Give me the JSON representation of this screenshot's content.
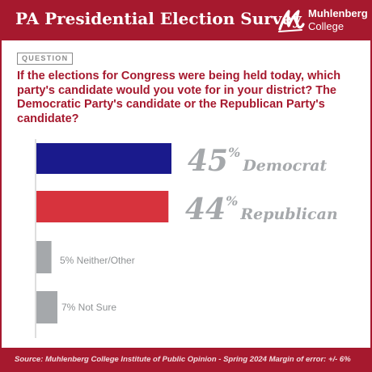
{
  "header": {
    "title": "PA Presidential Election Survey"
  },
  "logo": {
    "line1": "Muhlenberg",
    "line2": "College"
  },
  "question": {
    "tag": "QUESTION",
    "text": "If the elections for Congress were being held today, which party's candidate would you vote for in your district? The Democratic Party's candidate or the Republican Party's candidate?"
  },
  "colors": {
    "brand": "#a6192e",
    "democrat": "#1a1a8c",
    "republican": "#d7333d",
    "other": "#a5a8ab",
    "axis": "#c8c8c8"
  },
  "chart_data": {
    "type": "bar",
    "orientation": "horizontal",
    "categories": [
      "Democrat",
      "Republican",
      "Neither/Other",
      "Not Sure"
    ],
    "values": [
      45,
      44,
      5,
      7
    ],
    "labels": [
      {
        "number": "45",
        "unit": "%",
        "name": "Democrat",
        "style": "large"
      },
      {
        "number": "44",
        "unit": "%",
        "name": "Republican",
        "style": "large"
      },
      {
        "text": "5% Neither/Other",
        "style": "small"
      },
      {
        "text": "7% Not Sure",
        "style": "small"
      }
    ],
    "colors": [
      "#1a1a8c",
      "#d7333d",
      "#a5a8ab",
      "#a5a8ab"
    ],
    "xlim": [
      0,
      45
    ]
  },
  "footer": {
    "text": "Source: Muhlenberg College Institute of Public Opinion - Spring 2024 Margin of error: +/- 6%"
  }
}
